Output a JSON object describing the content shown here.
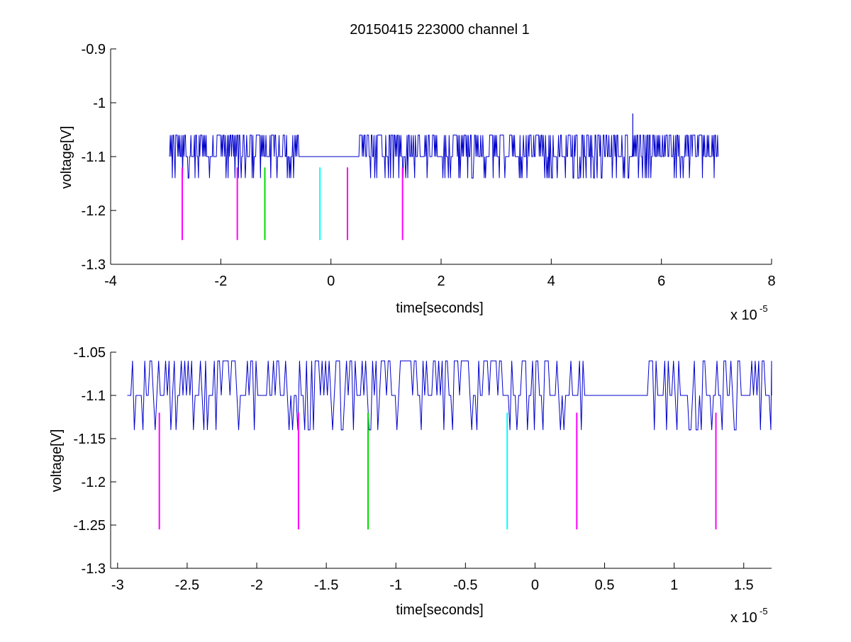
{
  "figure": {
    "title": "20150415 223000 channel 1",
    "background": "#ffffff"
  },
  "colors": {
    "trace": "#0000cc",
    "magenta": "#ff00ff",
    "green": "#00dd00",
    "cyan": "#00ffff",
    "axis": "#000000"
  },
  "chart_data": [
    {
      "type": "line",
      "title": "20150415 223000 channel 1",
      "xlabel": "time[seconds]",
      "ylabel": "voltage[V]",
      "x_multiplier_label": "x 10",
      "x_multiplier_exponent": "-5",
      "xlim": [
        -4,
        8
      ],
      "ylim": [
        -1.3,
        -0.9
      ],
      "xticks": [
        -4,
        -2,
        0,
        2,
        4,
        6,
        8
      ],
      "xtick_labels": [
        "-4",
        "-2",
        "0",
        "2",
        "4",
        "6",
        "8"
      ],
      "yticks": [
        -1.3,
        -1.2,
        -1.1,
        -1.0,
        -0.9
      ],
      "ytick_labels": [
        "-1.3",
        "-1.2",
        "-1.1",
        "-1",
        "-0.9"
      ],
      "grid": false,
      "series": [
        {
          "style": "step-noise",
          "color": "#0000cc",
          "x_range": [
            -2.93,
            7.03
          ],
          "baseline": -1.1,
          "levels": [
            -1.14,
            -1.1,
            -1.06
          ],
          "spike": {
            "x": 5.48,
            "y": -1.02
          }
        }
      ],
      "markers": [
        {
          "x": -2.7,
          "y_top": -1.12,
          "y_bottom": -1.255,
          "color": "#ff00ff"
        },
        {
          "x": -1.7,
          "y_top": -1.12,
          "y_bottom": -1.255,
          "color": "#ff00ff"
        },
        {
          "x": -1.2,
          "y_top": -1.12,
          "y_bottom": -1.255,
          "color": "#00dd00"
        },
        {
          "x": -0.2,
          "y_top": -1.12,
          "y_bottom": -1.255,
          "color": "#00ffff"
        },
        {
          "x": 0.3,
          "y_top": -1.12,
          "y_bottom": -1.255,
          "color": "#ff00ff"
        },
        {
          "x": 1.3,
          "y_top": -1.12,
          "y_bottom": -1.255,
          "color": "#ff00ff"
        }
      ]
    },
    {
      "type": "line",
      "xlabel": "time[seconds]",
      "ylabel": "voltage[V]",
      "x_multiplier_label": "x 10",
      "x_multiplier_exponent": "-5",
      "xlim": [
        -3.05,
        1.7
      ],
      "ylim": [
        -1.3,
        -1.05
      ],
      "xticks": [
        -3,
        -2.5,
        -2,
        -1.5,
        -1,
        -0.5,
        0,
        0.5,
        1,
        1.5
      ],
      "xtick_labels": [
        "-3",
        "-2.5",
        "-2",
        "-1.5",
        "-1",
        "-0.5",
        "0",
        "0.5",
        "1",
        "1.5"
      ],
      "yticks": [
        -1.3,
        -1.25,
        -1.2,
        -1.15,
        -1.1,
        -1.05
      ],
      "ytick_labels": [
        "-1.3",
        "-1.25",
        "-1.2",
        "-1.15",
        "-1.1",
        "-1.05"
      ],
      "grid": false,
      "series": [
        {
          "style": "step-noise",
          "color": "#0000cc",
          "x_range": [
            -2.93,
            1.7
          ],
          "baseline": -1.1,
          "levels": [
            -1.14,
            -1.1,
            -1.06
          ]
        }
      ],
      "markers": [
        {
          "x": -2.7,
          "y_top": -1.12,
          "y_bottom": -1.255,
          "color": "#ff00ff"
        },
        {
          "x": -1.7,
          "y_top": -1.12,
          "y_bottom": -1.255,
          "color": "#ff00ff"
        },
        {
          "x": -1.2,
          "y_top": -1.12,
          "y_bottom": -1.255,
          "color": "#00dd00"
        },
        {
          "x": -0.2,
          "y_top": -1.12,
          "y_bottom": -1.255,
          "color": "#00ffff"
        },
        {
          "x": 0.3,
          "y_top": -1.12,
          "y_bottom": -1.255,
          "color": "#ff00ff"
        },
        {
          "x": 1.3,
          "y_top": -1.12,
          "y_bottom": -1.255,
          "color": "#ff00ff"
        }
      ]
    }
  ]
}
